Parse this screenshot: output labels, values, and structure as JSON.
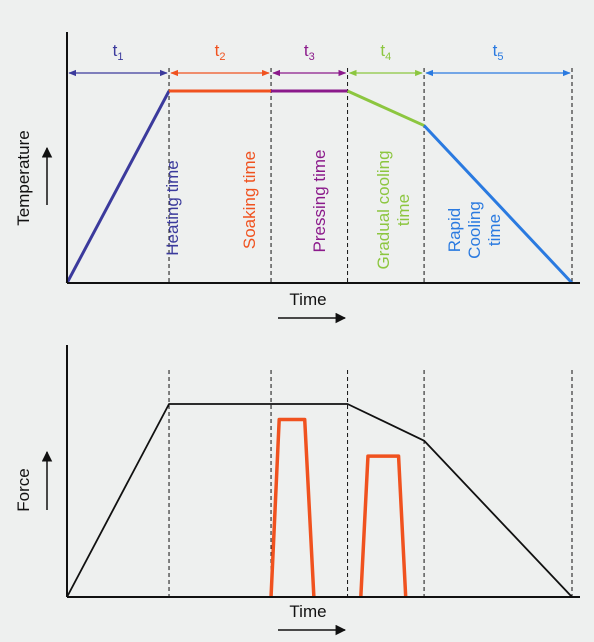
{
  "chart_data": [
    {
      "type": "line",
      "title": "",
      "xlabel": "Time",
      "ylabel": "Temperature",
      "grid": false,
      "phases": [
        {
          "id": "t1",
          "label": "t",
          "sub": "1",
          "description": "Heating time",
          "color": "#3b3a9c"
        },
        {
          "id": "t2",
          "label": "t",
          "sub": "2",
          "description": "Soaking time",
          "color": "#f0521f"
        },
        {
          "id": "t3",
          "label": "t",
          "sub": "3",
          "description": "Pressing time",
          "color": "#8b1a8b"
        },
        {
          "id": "t4",
          "label": "t",
          "sub": "4",
          "description": "Gradual cooling time",
          "color": "#8cc63f"
        },
        {
          "id": "t5",
          "label": "t",
          "sub": "5",
          "description": "Rapid Cooling time",
          "color": "#2a7ae0"
        }
      ],
      "phase_boundaries": [
        0,
        1,
        2,
        2.75,
        3.5,
        4.95
      ],
      "series": [
        {
          "segment": "t1",
          "x": [
            0,
            1
          ],
          "y": [
            0,
            1.0
          ],
          "color": "#3b3a9c"
        },
        {
          "segment": "t2",
          "x": [
            1,
            2
          ],
          "y": [
            1.0,
            1.0
          ],
          "color": "#f0521f"
        },
        {
          "segment": "t3",
          "x": [
            2,
            2.75
          ],
          "y": [
            1.0,
            1.0
          ],
          "color": "#8b1a8b"
        },
        {
          "segment": "t4",
          "x": [
            2.75,
            3.5
          ],
          "y": [
            1.0,
            0.82
          ],
          "color": "#8cc63f"
        },
        {
          "segment": "t5",
          "x": [
            3.5,
            4.95
          ],
          "y": [
            0.82,
            0
          ],
          "color": "#2a7ae0"
        }
      ],
      "xlim": [
        0,
        4.95
      ],
      "ylim": [
        0,
        1.0
      ]
    },
    {
      "type": "line",
      "title": "",
      "xlabel": "Time",
      "ylabel": "Force",
      "grid": false,
      "phase_boundaries": [
        1,
        2,
        2.75,
        3.5,
        4.95
      ],
      "series": [
        {
          "role": "envelope",
          "color": "#111111",
          "x": [
            0,
            1,
            2.75,
            3.5,
            4.95
          ],
          "y": [
            0,
            1.0,
            1.0,
            0.81,
            0
          ]
        },
        {
          "role": "pulse",
          "color": "#f0521f",
          "x": [
            2,
            2.08,
            2.33,
            2.42
          ],
          "y": [
            0,
            0.92,
            0.92,
            0
          ]
        },
        {
          "role": "pulse",
          "color": "#f0521f",
          "x": [
            2.88,
            2.95,
            3.25,
            3.32
          ],
          "y": [
            0,
            0.73,
            0.73,
            0
          ]
        }
      ],
      "xlim": [
        0,
        4.95
      ],
      "ylim": [
        0,
        1.0
      ]
    }
  ],
  "colors": {
    "axis": "#111111",
    "background": "#eef0ef",
    "boundary": "#111111"
  }
}
